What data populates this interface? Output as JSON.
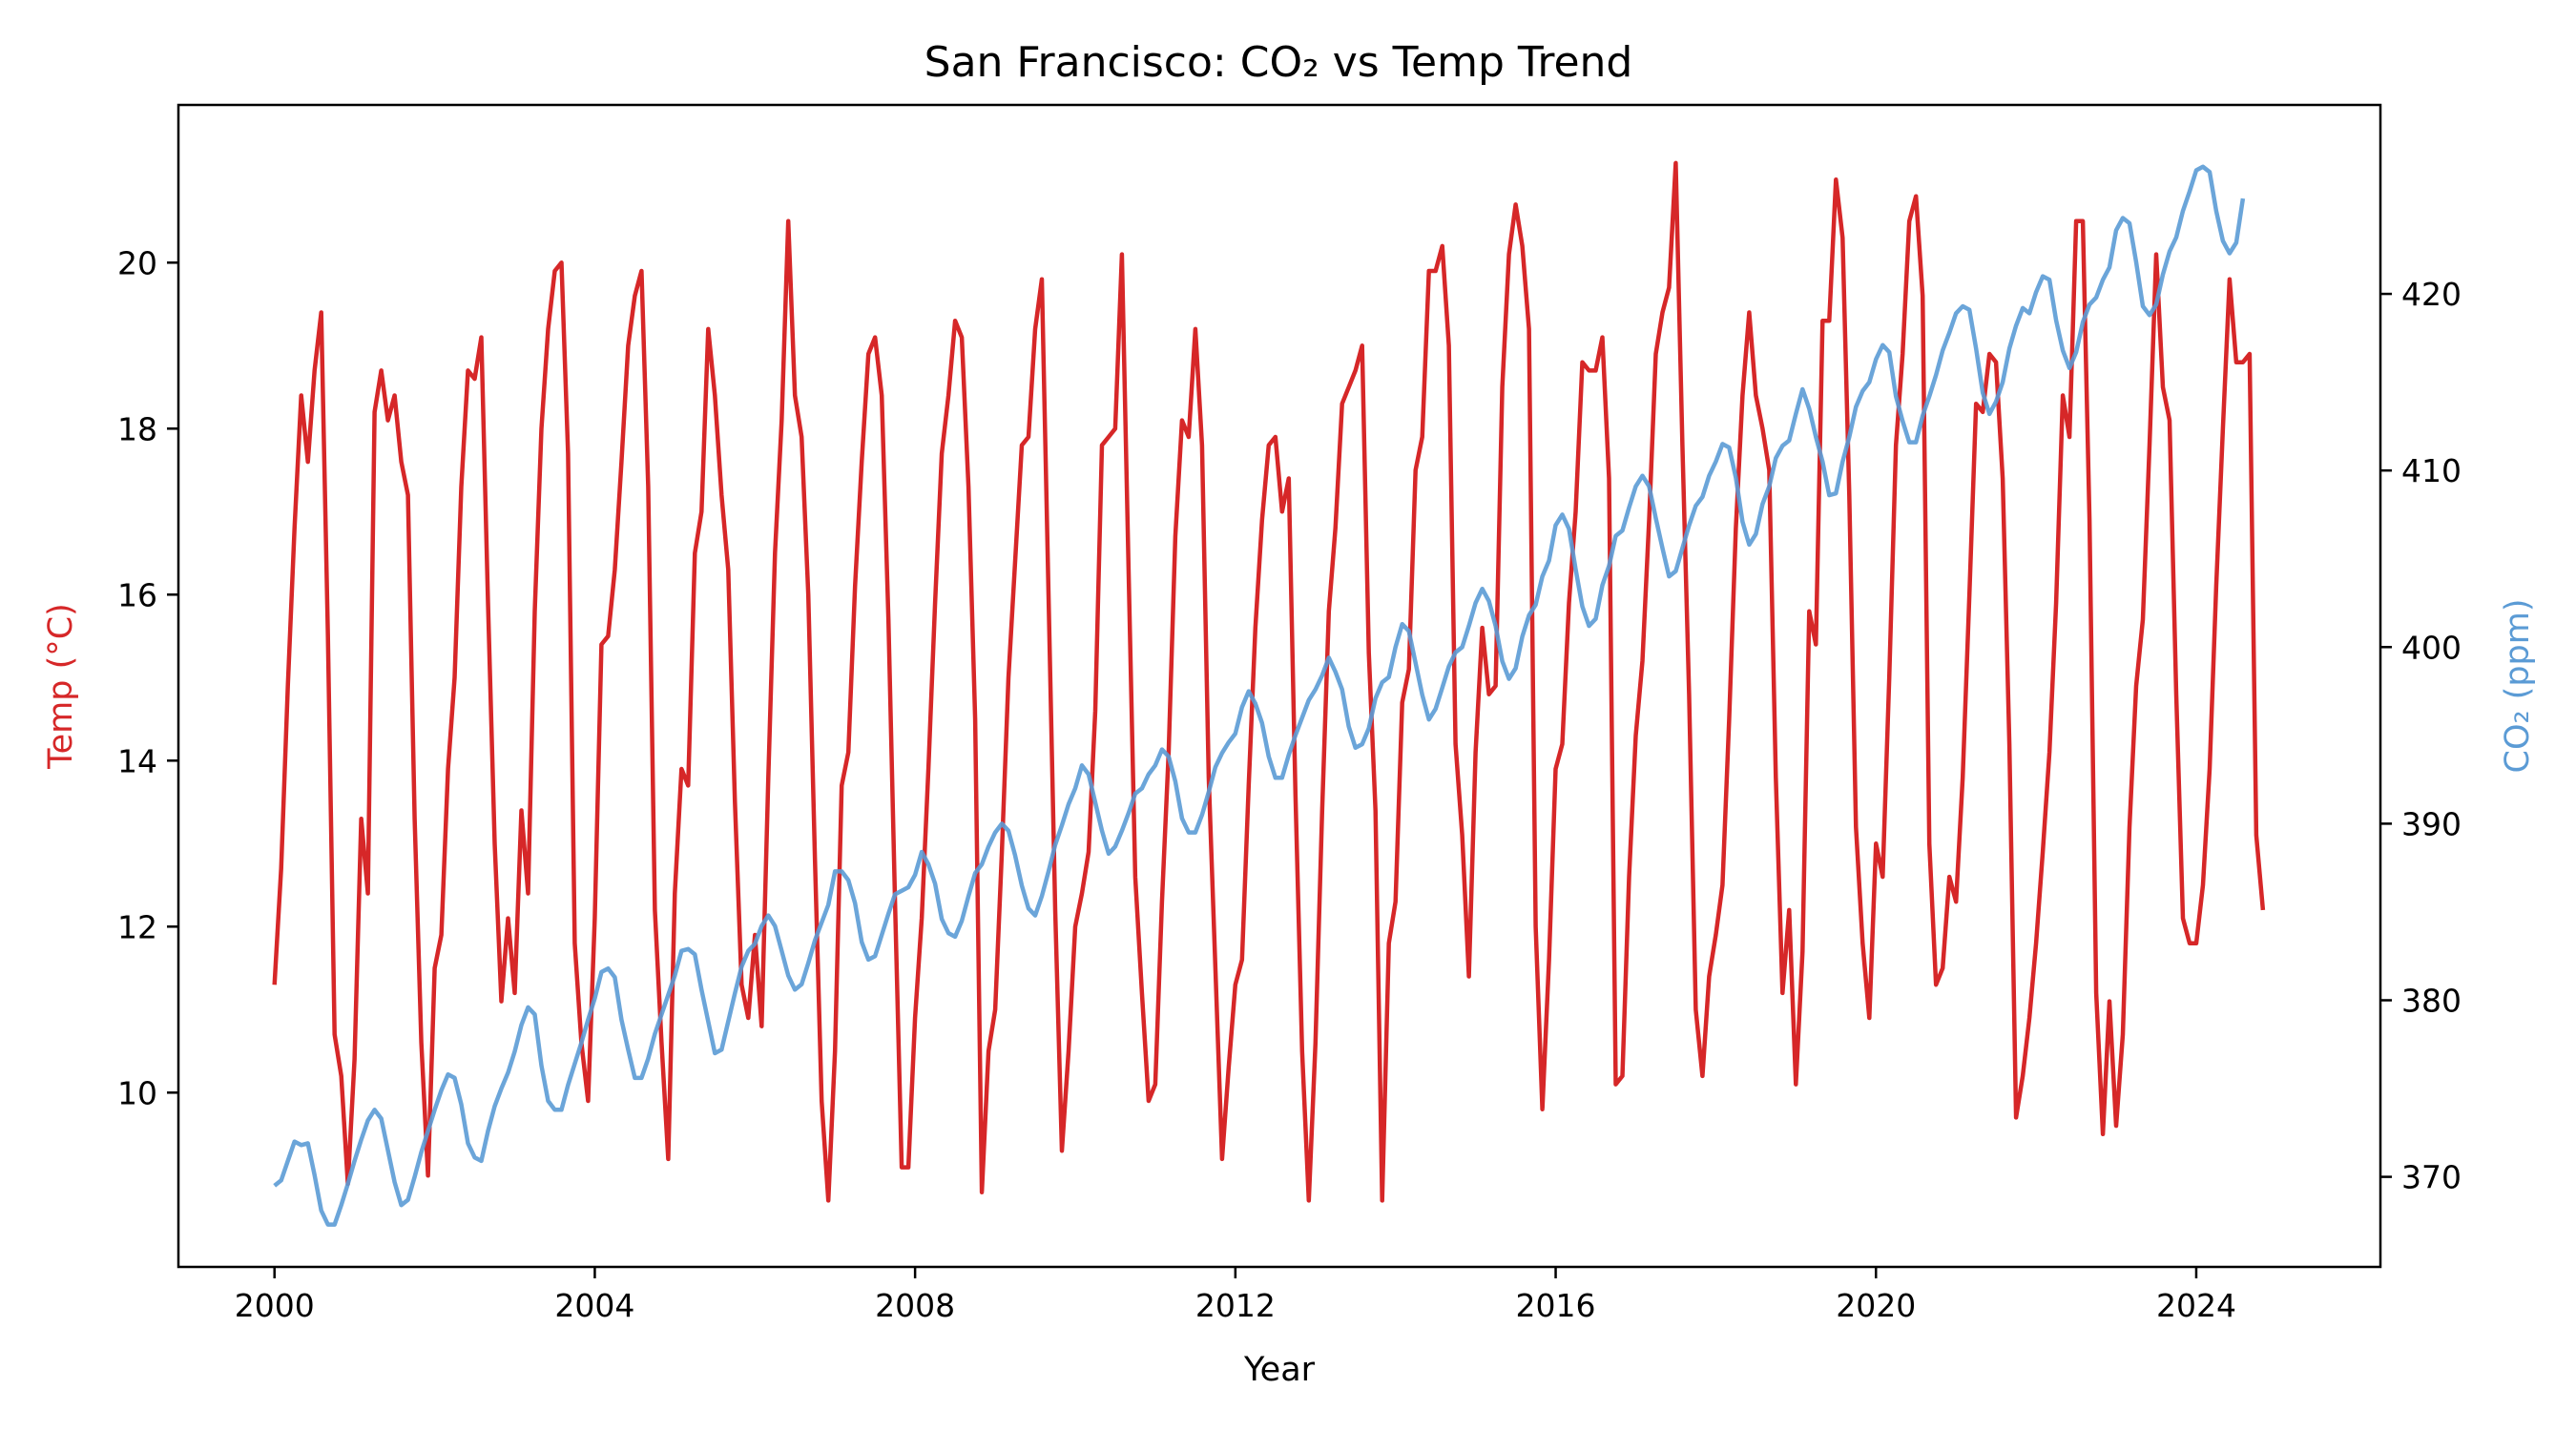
{
  "chart_data": {
    "type": "line",
    "title": "San Francisco: CO₂ vs Temp Trend",
    "xlabel": "Year",
    "ylabel_left": "Temp (°C)",
    "ylabel_right": "CO₂ (ppm)",
    "xlim": [
      1998.8,
      2026.3
    ],
    "ylim_left": [
      7.9,
      21.9
    ],
    "ylim_right": [
      364.9,
      430.7
    ],
    "xticks": [
      "2000",
      "2004",
      "2008",
      "2012",
      "2016",
      "2020",
      "2024"
    ],
    "yticks_left": [
      "10",
      "12",
      "14",
      "16",
      "18",
      "20"
    ],
    "yticks_right": [
      "370",
      "380",
      "390",
      "400",
      "410",
      "420"
    ],
    "grid": false,
    "colors": {
      "temp": "#d62728",
      "co2": "#5b9bd5"
    },
    "series": [
      {
        "name": "Temp (°C)",
        "axis": "left",
        "x_start": 2000,
        "x_step_months": 1,
        "values": [
          11.3,
          12.7,
          14.9,
          16.8,
          18.4,
          17.6,
          18.7,
          19.4,
          15.5,
          10.7,
          10.2,
          8.9,
          10.4,
          13.3,
          12.4,
          18.2,
          18.7,
          18.1,
          18.4,
          17.6,
          17.2,
          13.3,
          10.6,
          9.0,
          11.5,
          11.9,
          13.9,
          15.0,
          17.3,
          18.7,
          18.6,
          19.1,
          15.9,
          13.0,
          11.1,
          12.1,
          11.2,
          13.4,
          12.4,
          15.8,
          18.0,
          19.2,
          19.9,
          20.0,
          17.7,
          11.8,
          10.6,
          9.9,
          12.1,
          15.4,
          15.5,
          16.3,
          17.6,
          19.0,
          19.6,
          19.9,
          17.3,
          12.2,
          10.6,
          9.2,
          12.4,
          13.9,
          13.7,
          16.5,
          17.0,
          19.2,
          18.4,
          17.2,
          16.3,
          13.5,
          11.3,
          10.9,
          11.9,
          10.8,
          13.8,
          16.5,
          18.1,
          20.5,
          18.4,
          17.9,
          16.0,
          12.8,
          9.9,
          8.7,
          10.5,
          13.7,
          14.1,
          16.1,
          17.6,
          18.9,
          19.1,
          18.4,
          15.7,
          12.3,
          9.1,
          9.1,
          10.9,
          12.1,
          13.9,
          15.9,
          17.7,
          18.4,
          19.3,
          19.1,
          17.3,
          14.5,
          8.8,
          10.5,
          11.0,
          12.9,
          15.0,
          16.4,
          17.8,
          17.9,
          19.2,
          19.8,
          16.0,
          12.2,
          9.3,
          10.5,
          12.0,
          12.4,
          12.9,
          14.6,
          17.8,
          17.9,
          18.0,
          20.1,
          16.3,
          12.6,
          11.2,
          9.9,
          10.1,
          12.3,
          14.1,
          16.7,
          18.1,
          17.9,
          19.2,
          17.8,
          13.8,
          11.5,
          9.2,
          10.3,
          11.3,
          11.6,
          13.7,
          15.6,
          16.9,
          17.8,
          17.9,
          17.0,
          17.4,
          13.6,
          10.5,
          8.7,
          10.6,
          13.4,
          15.8,
          16.8,
          18.3,
          18.5,
          18.7,
          19.0,
          15.3,
          13.4,
          8.7,
          11.8,
          12.3,
          14.7,
          15.1,
          17.5,
          17.9,
          19.9,
          19.9,
          20.2,
          19.0,
          14.2,
          13.1,
          11.4,
          14.1,
          15.6,
          14.8,
          14.9,
          18.5,
          20.1,
          20.7,
          20.2,
          19.2,
          12.0,
          9.8,
          11.6,
          13.9,
          14.2,
          15.9,
          17.0,
          18.8,
          18.7,
          18.7,
          19.1,
          17.4,
          10.1,
          10.2,
          12.6,
          14.3,
          15.2,
          16.9,
          18.9,
          19.4,
          19.7,
          21.2,
          17.8,
          14.8,
          11.0,
          10.2,
          11.4,
          11.9,
          12.5,
          14.5,
          16.8,
          18.4,
          19.4,
          18.4,
          18.0,
          17.5,
          13.8,
          11.2,
          12.2,
          10.1,
          11.7,
          15.8,
          15.4,
          19.3,
          19.3,
          21.0,
          20.3,
          17.2,
          13.2,
          11.8,
          10.9,
          13.0,
          12.6,
          15.0,
          17.8,
          18.9,
          20.5,
          20.8,
          19.6,
          13.0,
          11.3,
          11.5,
          12.6,
          12.3,
          13.8,
          16.0,
          18.3,
          18.2,
          18.9,
          18.8,
          17.4,
          14.2,
          9.7,
          10.2,
          10.9,
          11.8,
          12.9,
          14.1,
          15.9,
          18.4,
          17.9,
          20.5,
          20.5,
          16.9,
          11.2,
          9.5,
          11.1,
          9.6,
          10.7,
          13.2,
          14.9,
          15.7,
          17.8,
          20.1,
          18.5,
          18.1,
          14.8,
          12.1,
          11.8,
          11.8,
          12.5,
          13.9,
          16.1,
          18.0,
          19.8,
          18.8,
          18.8,
          18.9,
          13.1,
          12.2
        ]
      },
      {
        "name": "CO₂ (ppm)",
        "axis": "right",
        "x_start": 2000,
        "x_step_months": 1,
        "values": [
          369.5,
          369.8,
          370.9,
          372.0,
          371.8,
          371.9,
          370.1,
          368.1,
          367.3,
          367.3,
          368.4,
          369.6,
          370.9,
          372.1,
          373.2,
          373.8,
          373.3,
          371.5,
          369.7,
          368.4,
          368.7,
          370.0,
          371.4,
          372.6,
          373.8,
          374.9,
          375.8,
          375.6,
          374.1,
          371.9,
          371.1,
          370.9,
          372.6,
          374.0,
          375.0,
          375.9,
          377.1,
          378.6,
          379.6,
          379.2,
          376.3,
          374.3,
          373.8,
          373.8,
          375.2,
          376.4,
          377.6,
          378.9,
          380.1,
          381.6,
          381.8,
          381.3,
          378.9,
          377.2,
          375.6,
          375.6,
          376.7,
          378.1,
          379.2,
          380.3,
          381.4,
          382.8,
          382.9,
          382.6,
          380.6,
          378.8,
          377.0,
          377.2,
          378.8,
          380.4,
          381.9,
          382.8,
          383.2,
          384.2,
          384.8,
          384.2,
          382.8,
          381.4,
          380.6,
          380.9,
          382.1,
          383.4,
          384.4,
          385.4,
          387.3,
          387.3,
          386.8,
          385.5,
          383.3,
          382.3,
          382.5,
          383.7,
          384.9,
          386.0,
          386.2,
          386.4,
          387.1,
          388.4,
          387.7,
          386.6,
          384.6,
          383.8,
          383.6,
          384.5,
          385.9,
          387.2,
          387.7,
          388.7,
          389.5,
          390.0,
          389.6,
          388.2,
          386.5,
          385.2,
          384.8,
          385.9,
          387.3,
          388.8,
          389.9,
          391.1,
          392.0,
          393.3,
          392.8,
          391.2,
          389.6,
          388.3,
          388.7,
          389.6,
          390.6,
          391.7,
          392.0,
          392.8,
          393.3,
          394.2,
          393.8,
          392.4,
          390.3,
          389.5,
          389.5,
          390.5,
          391.8,
          393.2,
          394.0,
          394.6,
          395.1,
          396.6,
          397.5,
          396.8,
          395.7,
          393.8,
          392.6,
          392.6,
          393.9,
          395.0,
          396.0,
          397.0,
          397.6,
          398.4,
          399.4,
          398.6,
          397.6,
          395.5,
          394.3,
          394.5,
          395.4,
          397.1,
          398.0,
          398.3,
          400.0,
          401.3,
          400.9,
          399.1,
          397.3,
          395.9,
          396.5,
          397.7,
          398.9,
          399.7,
          400.0,
          401.2,
          402.5,
          403.3,
          402.6,
          401.2,
          399.2,
          398.2,
          398.8,
          400.6,
          401.8,
          402.4,
          404.0,
          404.9,
          406.9,
          407.5,
          406.7,
          404.4,
          402.3,
          401.2,
          401.6,
          403.5,
          404.6,
          406.3,
          406.6,
          407.9,
          409.1,
          409.7,
          409.1,
          407.3,
          405.6,
          404.0,
          404.3,
          405.6,
          406.9,
          408.0,
          408.5,
          409.7,
          410.5,
          411.5,
          411.3,
          409.6,
          407.1,
          405.8,
          406.4,
          408.1,
          409.1,
          410.7,
          411.4,
          411.7,
          413.2,
          414.6,
          413.5,
          411.9,
          410.5,
          408.6,
          408.7,
          410.5,
          411.9,
          413.6,
          414.5,
          415.0,
          416.3,
          417.1,
          416.7,
          414.2,
          412.8,
          411.6,
          411.6,
          413.1,
          414.2,
          415.4,
          416.8,
          417.8,
          418.9,
          419.3,
          419.1,
          416.9,
          414.4,
          413.2,
          413.9,
          415.0,
          416.9,
          418.2,
          419.2,
          418.9,
          420.1,
          421.0,
          420.8,
          418.5,
          416.8,
          415.8,
          416.7,
          418.4,
          419.4,
          419.8,
          420.8,
          421.5,
          423.6,
          424.3,
          424.0,
          421.8,
          419.3,
          418.8,
          419.4,
          421.1,
          422.4,
          423.2,
          424.7,
          425.8,
          427.0,
          427.2,
          426.9,
          424.7,
          423.0,
          422.3,
          422.9,
          425.4
        ]
      }
    ]
  }
}
